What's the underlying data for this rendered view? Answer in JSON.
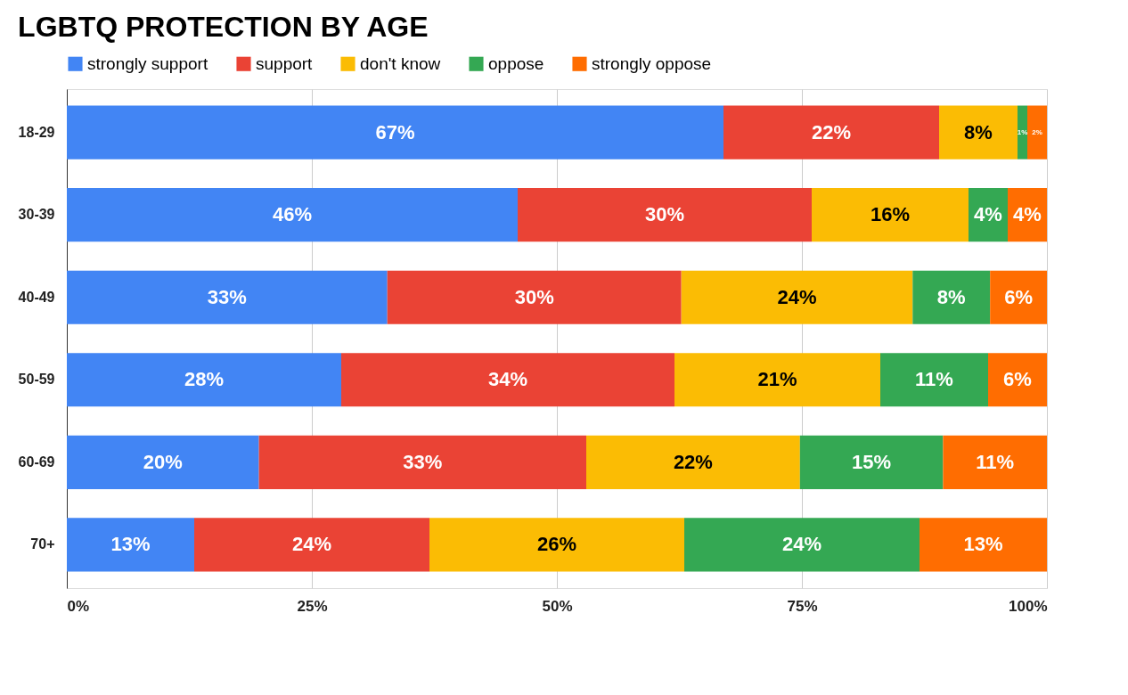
{
  "chart_data": {
    "type": "bar",
    "orientation": "horizontal",
    "stacked": true,
    "title": "LGBTQ PROTECTION BY AGE",
    "categories": [
      "18-29",
      "30-39",
      "40-49",
      "50-59",
      "60-69",
      "70+"
    ],
    "series": [
      {
        "name": "strongly support",
        "color": "#4285f4",
        "values": [
          67,
          46,
          32.7,
          28,
          19.6,
          13
        ],
        "value_labels": [
          "67%",
          "46%",
          "33%",
          "28%",
          "20%",
          "13%"
        ]
      },
      {
        "name": "support",
        "color": "#ea4335",
        "values": [
          22,
          30,
          30,
          34,
          33.4,
          24
        ],
        "value_labels": [
          "22%",
          "30%",
          "30%",
          "34%",
          "33%",
          "24%"
        ]
      },
      {
        "name": "don't know",
        "color": "#fbbc04",
        "values": [
          8,
          16,
          23.6,
          21,
          21.8,
          26
        ],
        "value_labels": [
          "8%",
          "16%",
          "24%",
          "21%",
          "22%",
          "26%"
        ]
      },
      {
        "name": "oppose",
        "color": "#34a853",
        "values": [
          1,
          4,
          7.9,
          11,
          14.6,
          24
        ],
        "value_labels": [
          "1%",
          "4%",
          "8%",
          "11%",
          "15%",
          "24%"
        ]
      },
      {
        "name": "strongly oppose",
        "color": "#ff6d01",
        "values": [
          2,
          4,
          5.8,
          6,
          10.6,
          13
        ],
        "value_labels": [
          "2%",
          "4%",
          "6%",
          "6%",
          "11%",
          "13%"
        ]
      }
    ],
    "xlim": [
      0,
      100
    ],
    "xticks": [
      {
        "value": 0,
        "label": "0%"
      },
      {
        "value": 25,
        "label": "25%"
      },
      {
        "value": 50,
        "label": "50%"
      },
      {
        "value": 75,
        "label": "75%"
      },
      {
        "value": 100,
        "label": "100%"
      }
    ],
    "grid": "x",
    "legend": "top"
  }
}
